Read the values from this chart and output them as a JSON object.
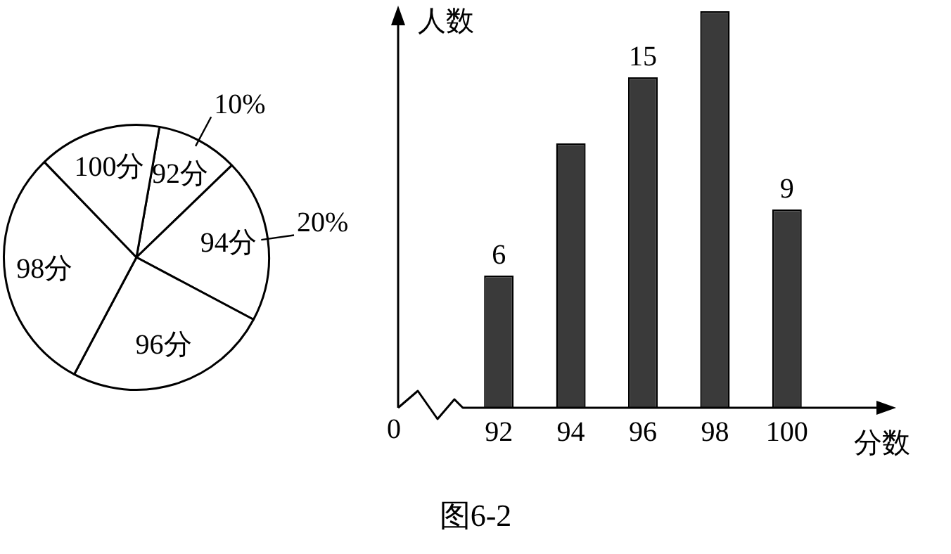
{
  "chart_data": [
    {
      "type": "pie",
      "categories": [
        "92分",
        "94分",
        "96分",
        "98分",
        "100分"
      ],
      "values": [
        10,
        20,
        25,
        30,
        15
      ],
      "colors": [
        "#ffffff",
        "#ffffff",
        "#ffffff",
        "#ffffff",
        "#ffffff"
      ],
      "value_labels": [
        "10%",
        "20%",
        null,
        null,
        null
      ]
    },
    {
      "type": "bar",
      "categories": [
        "92",
        "94",
        "96",
        "98",
        "100"
      ],
      "values": [
        6,
        12,
        15,
        18,
        9
      ],
      "color": "#3a3a3a",
      "value_labels": [
        "6",
        null,
        "15",
        null,
        "9"
      ],
      "xlabel": "分数",
      "ylabel": "人数",
      "annotations": [
        "0",
        "图6-2"
      ]
    }
  ]
}
